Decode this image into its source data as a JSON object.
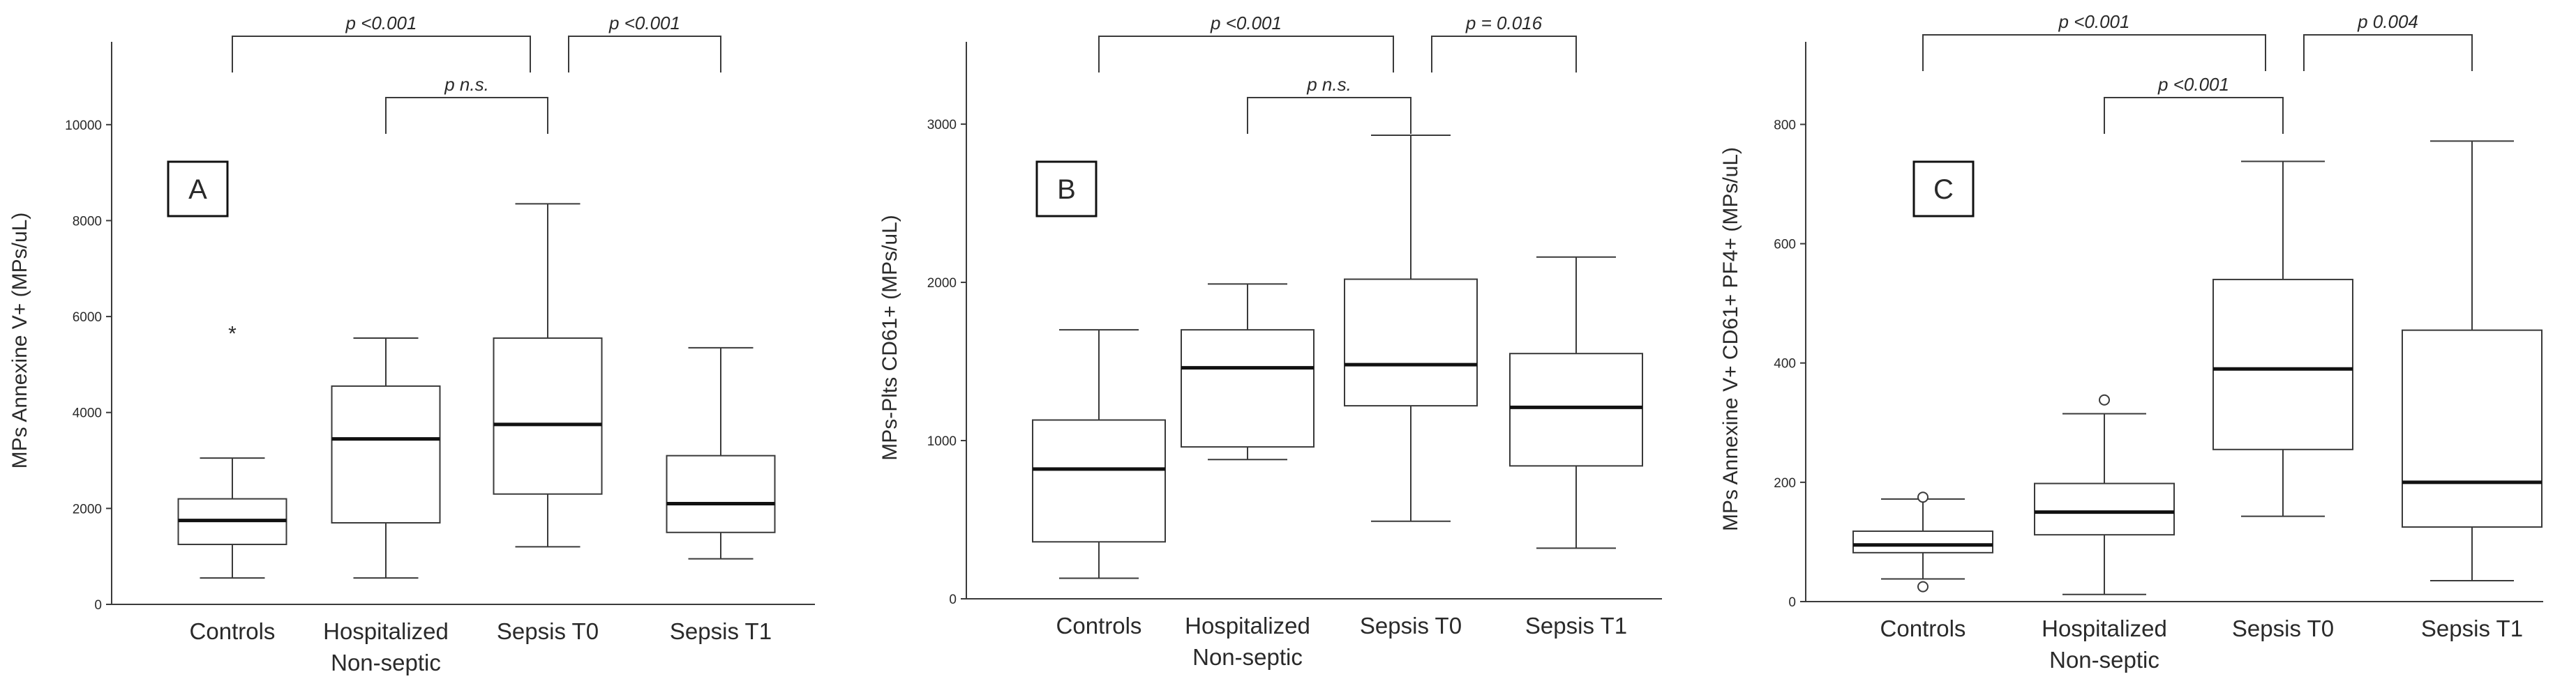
{
  "figure": {
    "panels": [
      {
        "letter": "A",
        "ylabel": "MPs Annexine V+ (MPs/uL)"
      },
      {
        "letter": "B",
        "ylabel": "MPs-Plts CD61+ (MPs/uL)"
      },
      {
        "letter": "C",
        "ylabel": "MPs Annexine V+ CD61+ PF4+ (MPs/uL)"
      }
    ]
  },
  "chart_data": [
    {
      "type": "box",
      "panel_label": "A",
      "ylabel": "MPs Annexine V+ (MPs/uL)",
      "ylim": [
        0,
        11000
      ],
      "yticks": [
        0,
        2000,
        4000,
        6000,
        8000,
        10000
      ],
      "categories": [
        "Controls",
        "Hospitalized\nNon-septic",
        "Sepsis T0",
        "Sepsis T1"
      ],
      "boxes": [
        {
          "category": "Controls",
          "min": 550,
          "q1": 1250,
          "median": 1750,
          "q3": 2200,
          "max": 3050,
          "outliers": [
            {
              "value": 5700,
              "marker": "*"
            }
          ]
        },
        {
          "category": "Hospitalized Non-septic",
          "min": 550,
          "q1": 1700,
          "median": 3450,
          "q3": 4550,
          "max": 5550,
          "outliers": []
        },
        {
          "category": "Sepsis T0",
          "min": 1200,
          "q1": 2300,
          "median": 3750,
          "q3": 5550,
          "max": 8350,
          "outliers": []
        },
        {
          "category": "Sepsis T1",
          "min": 950,
          "q1": 1500,
          "median": 2100,
          "q3": 3100,
          "max": 5350,
          "outliers": []
        }
      ],
      "comparisons": [
        {
          "from": 0,
          "to": 2,
          "label": "p <0.001",
          "level": 0
        },
        {
          "from": 2,
          "to": 3,
          "label": "p <0.001",
          "level": 0
        },
        {
          "from": 1,
          "to": 2,
          "label": "p n.s.",
          "level": 1
        }
      ]
    },
    {
      "type": "box",
      "panel_label": "B",
      "ylabel": "MPs-Plts CD61+ (MPs/uL)",
      "ylim": [
        0,
        3300
      ],
      "yticks": [
        0,
        1000,
        2000,
        3000
      ],
      "categories": [
        "Controls",
        "Hospitalized\nNon-septic",
        "Sepsis T0",
        "Sepsis T1"
      ],
      "boxes": [
        {
          "category": "Controls",
          "min": 130,
          "q1": 360,
          "median": 820,
          "q3": 1130,
          "max": 1700,
          "outliers": []
        },
        {
          "category": "Hospitalized Non-septic",
          "min": 880,
          "q1": 960,
          "median": 1460,
          "q3": 1700,
          "max": 1990,
          "outliers": []
        },
        {
          "category": "Sepsis T0",
          "min": 490,
          "q1": 1220,
          "median": 1480,
          "q3": 2020,
          "max": 2930,
          "outliers": []
        },
        {
          "category": "Sepsis T1",
          "min": 320,
          "q1": 840,
          "median": 1210,
          "q3": 1550,
          "max": 2160,
          "outliers": []
        }
      ],
      "comparisons": [
        {
          "from": 0,
          "to": 2,
          "label": "p <0.001",
          "level": 0
        },
        {
          "from": 2,
          "to": 3,
          "label": "p = 0.016",
          "level": 0
        },
        {
          "from": 1,
          "to": 2,
          "label": "p n.s.",
          "level": 1
        }
      ]
    },
    {
      "type": "box",
      "panel_label": "C",
      "ylabel": "MPs Annexine V+ CD61+ PF4+ (MPs/uL)",
      "ylim": [
        0,
        880
      ],
      "yticks": [
        0,
        200,
        400,
        600,
        800
      ],
      "categories": [
        "Controls",
        "Hospitalized\nNon-septic",
        "Sepsis T0",
        "Sepsis T1"
      ],
      "boxes": [
        {
          "category": "Controls",
          "min": 38,
          "q1": 82,
          "median": 95,
          "q3": 118,
          "max": 172,
          "outliers": [
            {
              "value": 175,
              "marker": "o"
            },
            {
              "value": 25,
              "marker": "o"
            }
          ]
        },
        {
          "category": "Hospitalized Non-septic",
          "min": 12,
          "q1": 112,
          "median": 150,
          "q3": 198,
          "max": 315,
          "outliers": [
            {
              "value": 338,
              "marker": "o"
            }
          ]
        },
        {
          "category": "Sepsis T0",
          "min": 143,
          "q1": 255,
          "median": 390,
          "q3": 540,
          "max": 738,
          "outliers": []
        },
        {
          "category": "Sepsis T1",
          "min": 35,
          "q1": 125,
          "median": 200,
          "q3": 455,
          "max": 772,
          "outliers": []
        }
      ],
      "comparisons": [
        {
          "from": 0,
          "to": 2,
          "label": "p <0.001",
          "level": 0
        },
        {
          "from": 2,
          "to": 3,
          "label": "p 0.004",
          "level": 0
        },
        {
          "from": 1,
          "to": 2,
          "label": "p <0.001",
          "level": 1
        }
      ]
    }
  ]
}
